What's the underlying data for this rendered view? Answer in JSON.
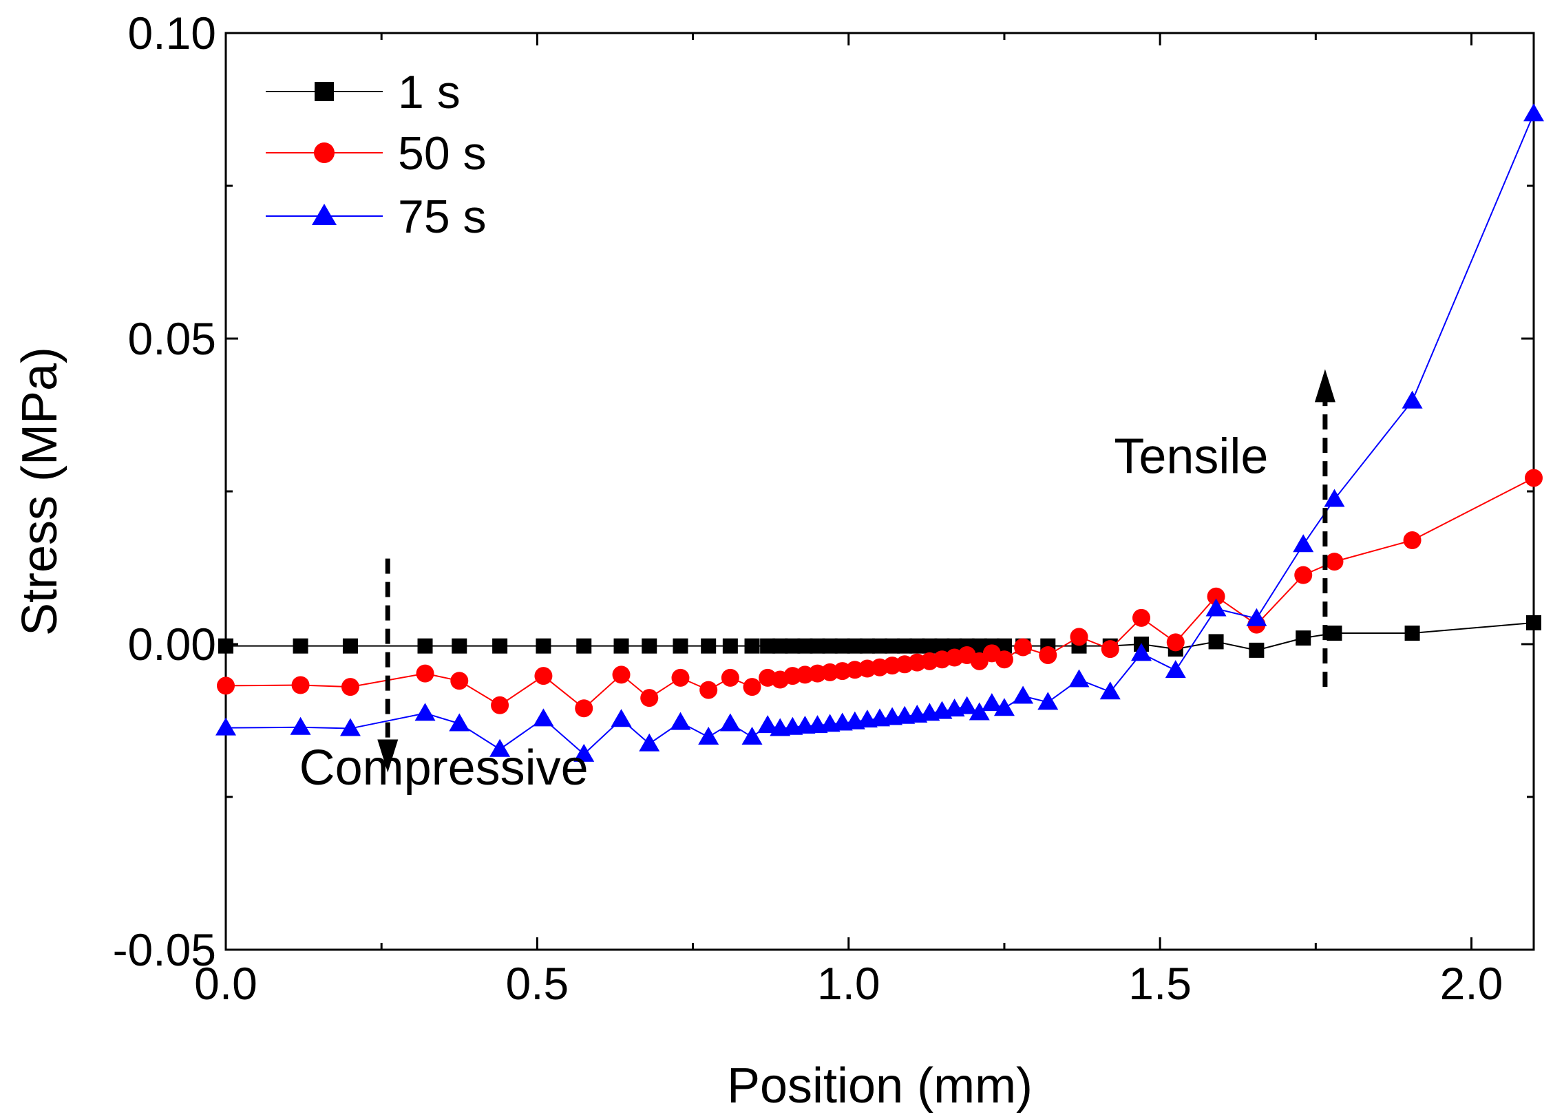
{
  "chart_data": {
    "type": "line",
    "xlabel": "Position (mm)",
    "ylabel": "Stress (MPa)",
    "xlim": [
      0.0,
      2.1
    ],
    "ylim": [
      -0.05,
      0.1
    ],
    "xticks": [
      0.0,
      0.5,
      1.0,
      1.5,
      2.0
    ],
    "xtick_labels": [
      "0.0",
      "0.5",
      "1.0",
      "1.5",
      "2.0"
    ],
    "yticks": [
      -0.05,
      0.0,
      0.05,
      0.1
    ],
    "ytick_labels": [
      "-0.05",
      "0.00",
      "0.05",
      "0.10"
    ],
    "legend_position": "top-left",
    "annotations": [
      {
        "text": "Compressive",
        "arrow": "down",
        "arrow_x": 0.26,
        "arrow_from": 0.014,
        "arrow_to": -0.021,
        "text_x": 0.35,
        "text_y": -0.023
      },
      {
        "text": "Tensile",
        "arrow": "up",
        "arrow_x": 1.765,
        "arrow_from": -0.007,
        "arrow_to": 0.045,
        "text_x": 1.55,
        "text_y": 0.028
      }
    ],
    "series": [
      {
        "name": "1 s",
        "color": "#000000",
        "marker": "square",
        "x": [
          0.0,
          0.12,
          0.2,
          0.32,
          0.375,
          0.44,
          0.51,
          0.575,
          0.635,
          0.68,
          0.73,
          0.775,
          0.81,
          0.845,
          0.87,
          0.89,
          0.91,
          0.93,
          0.95,
          0.97,
          0.99,
          1.01,
          1.03,
          1.05,
          1.07,
          1.09,
          1.11,
          1.13,
          1.15,
          1.17,
          1.19,
          1.21,
          1.23,
          1.25,
          1.28,
          1.32,
          1.37,
          1.42,
          1.47,
          1.525,
          1.59,
          1.655,
          1.73,
          1.78,
          1.905,
          2.1
        ],
        "values": [
          -0.0003,
          -0.0003,
          -0.0003,
          -0.0003,
          -0.0003,
          -0.0003,
          -0.0003,
          -0.0003,
          -0.0003,
          -0.0003,
          -0.0003,
          -0.0003,
          -0.0003,
          -0.0003,
          -0.0003,
          -0.0003,
          -0.0003,
          -0.0003,
          -0.0003,
          -0.0003,
          -0.0003,
          -0.0003,
          -0.0003,
          -0.0003,
          -0.0003,
          -0.0003,
          -0.0003,
          -0.0003,
          -0.0003,
          -0.0003,
          -0.0003,
          -0.0003,
          -0.0003,
          -0.0003,
          -0.0003,
          -0.0003,
          -0.0003,
          -0.0003,
          0.0,
          -0.0008,
          0.0004,
          -0.001,
          0.001,
          0.0018,
          0.0018,
          0.0035
        ]
      },
      {
        "name": "50 s",
        "color": "#ff0000",
        "marker": "circle",
        "x": [
          0.0,
          0.12,
          0.2,
          0.32,
          0.375,
          0.44,
          0.51,
          0.575,
          0.635,
          0.68,
          0.73,
          0.775,
          0.81,
          0.845,
          0.87,
          0.89,
          0.91,
          0.93,
          0.95,
          0.97,
          0.99,
          1.01,
          1.03,
          1.05,
          1.07,
          1.09,
          1.11,
          1.13,
          1.15,
          1.17,
          1.19,
          1.21,
          1.23,
          1.25,
          1.28,
          1.32,
          1.37,
          1.42,
          1.47,
          1.525,
          1.59,
          1.655,
          1.73,
          1.78,
          1.905,
          2.1
        ],
        "values": [
          -0.0068,
          -0.0067,
          -0.007,
          -0.0048,
          -0.006,
          -0.01,
          -0.0052,
          -0.0105,
          -0.005,
          -0.0088,
          -0.0055,
          -0.0075,
          -0.0055,
          -0.007,
          -0.0055,
          -0.0058,
          -0.0052,
          -0.005,
          -0.0048,
          -0.0046,
          -0.0044,
          -0.0042,
          -0.004,
          -0.0038,
          -0.0035,
          -0.0033,
          -0.003,
          -0.0028,
          -0.0025,
          -0.0022,
          -0.0018,
          -0.0028,
          -0.0015,
          -0.0025,
          -0.0005,
          -0.0018,
          0.0012,
          -0.0008,
          0.0043,
          0.0003,
          0.0078,
          0.0032,
          0.0113,
          0.0135,
          0.017,
          0.0272
        ]
      },
      {
        "name": "75 s",
        "color": "#0000ff",
        "marker": "triangle",
        "x": [
          0.0,
          0.12,
          0.2,
          0.32,
          0.375,
          0.44,
          0.51,
          0.575,
          0.635,
          0.68,
          0.73,
          0.775,
          0.81,
          0.845,
          0.87,
          0.89,
          0.91,
          0.93,
          0.95,
          0.97,
          0.99,
          1.01,
          1.03,
          1.05,
          1.07,
          1.09,
          1.11,
          1.13,
          1.15,
          1.17,
          1.19,
          1.21,
          1.23,
          1.25,
          1.28,
          1.32,
          1.37,
          1.42,
          1.47,
          1.525,
          1.59,
          1.655,
          1.73,
          1.78,
          1.905,
          2.1
        ],
        "values": [
          -0.0137,
          -0.0136,
          -0.0138,
          -0.0113,
          -0.013,
          -0.0172,
          -0.0122,
          -0.018,
          -0.0123,
          -0.0163,
          -0.0128,
          -0.0152,
          -0.013,
          -0.0152,
          -0.0133,
          -0.0138,
          -0.0136,
          -0.0134,
          -0.0133,
          -0.0131,
          -0.0129,
          -0.0127,
          -0.0124,
          -0.0122,
          -0.012,
          -0.0118,
          -0.0116,
          -0.0113,
          -0.011,
          -0.0106,
          -0.0102,
          -0.0112,
          -0.0097,
          -0.0105,
          -0.0085,
          -0.0095,
          -0.0058,
          -0.0078,
          -0.0015,
          -0.0043,
          0.0058,
          0.0042,
          0.0163,
          0.0237,
          0.0398,
          0.0868
        ]
      }
    ]
  }
}
